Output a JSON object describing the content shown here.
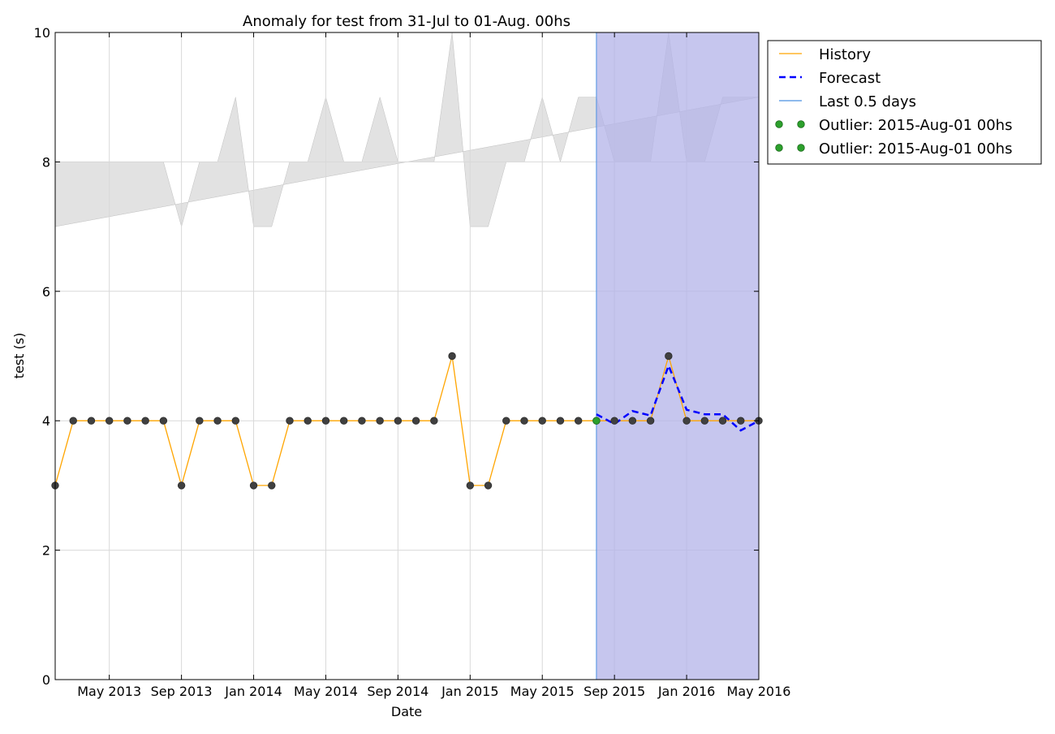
{
  "chart_data": {
    "type": "line",
    "title": "Anomaly for test from 31-Jul to 01-Aug. 00hs",
    "xlabel": "Date",
    "ylabel": "test (s)",
    "ylim": [
      0,
      10
    ],
    "xlim": [
      "2013-02-01",
      "2016-05-01"
    ],
    "x_ticks": [
      "May 2013",
      "Sep 2013",
      "Jan 2014",
      "May 2014",
      "Sep 2014",
      "Jan 2015",
      "May 2015",
      "Sep 2015",
      "Jan 2016",
      "May 2016"
    ],
    "y_ticks": [
      "0",
      "2",
      "4",
      "6",
      "8",
      "10"
    ],
    "grid": true,
    "legend_position": "outside-top-right",
    "x": [
      "2013-02-01",
      "2013-03-01",
      "2013-04-01",
      "2013-05-01",
      "2013-06-01",
      "2013-07-01",
      "2013-08-01",
      "2013-09-01",
      "2013-10-01",
      "2013-11-01",
      "2013-12-01",
      "2014-01-01",
      "2014-02-01",
      "2014-03-01",
      "2014-04-01",
      "2014-05-01",
      "2014-06-01",
      "2014-07-01",
      "2014-08-01",
      "2014-09-01",
      "2014-10-01",
      "2014-11-01",
      "2014-12-01",
      "2015-01-01",
      "2015-02-01",
      "2015-03-01",
      "2015-04-01",
      "2015-05-01",
      "2015-06-01",
      "2015-07-01",
      "2015-08-01",
      "2015-09-01",
      "2015-10-01",
      "2015-11-01",
      "2015-12-01",
      "2016-01-01",
      "2016-02-01",
      "2016-03-01",
      "2016-04-01",
      "2016-05-01"
    ],
    "series": [
      {
        "name": "History",
        "color": "#ffa500",
        "style": "solid-with-dark-markers",
        "values": [
          3,
          4,
          4,
          4,
          4,
          4,
          4,
          3,
          4,
          4,
          4,
          3,
          3,
          4,
          4,
          4,
          4,
          4,
          4,
          4,
          4,
          4,
          5,
          3,
          3,
          4,
          4,
          4,
          4,
          4,
          4,
          4,
          4,
          4,
          5,
          4,
          4,
          4,
          4,
          4
        ]
      },
      {
        "name": "Forecast",
        "color": "#0000ff",
        "style": "dashed",
        "x": [
          "2015-08-01",
          "2015-09-01",
          "2015-10-01",
          "2015-11-01",
          "2015-12-01",
          "2016-01-01",
          "2016-02-01",
          "2016-03-01",
          "2016-04-01",
          "2016-05-01"
        ],
        "values": [
          4.1,
          3.95,
          4.15,
          4.08,
          4.85,
          4.17,
          4.1,
          4.1,
          3.85,
          4.0
        ]
      },
      {
        "name": "Outlier: 2015-Aug-01 00hs",
        "color": "#2ca02c",
        "style": "markers",
        "x": [
          "2015-08-01"
        ],
        "values": [
          4
        ]
      },
      {
        "name": "Outlier: 2015-Aug-01 00hs",
        "color": "#2ca02c",
        "style": "markers",
        "x": [],
        "values": []
      }
    ],
    "band": {
      "color": "#d3d3d3",
      "lower_start": 7,
      "lower_end": 9,
      "upper": [
        8,
        8,
        8,
        8,
        8,
        8,
        8,
        7,
        8,
        8,
        9,
        7,
        7,
        8,
        8,
        9,
        8,
        8,
        9,
        8,
        8,
        8,
        10,
        7,
        7,
        8,
        8,
        9,
        8,
        9,
        9,
        8,
        8,
        8,
        10,
        8,
        8,
        9,
        9,
        9
      ]
    },
    "last_period": {
      "label": "Last 0.5 days",
      "start": "2015-08-01",
      "end": "2016-05-01",
      "fill_color": "#b3b3e8",
      "line_color": "#4a90e2"
    }
  }
}
